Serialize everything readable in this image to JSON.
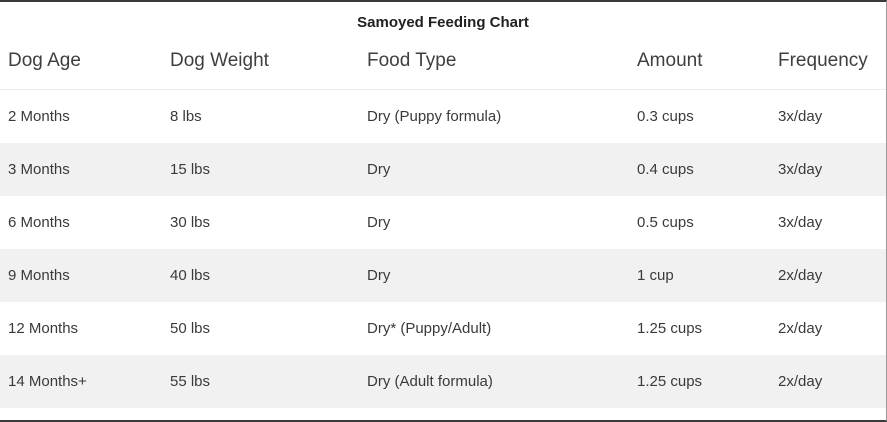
{
  "title": "Samoyed Feeding Chart",
  "colors": {
    "row_alternate": "#f1f1f1",
    "row_default": "#ffffff",
    "border_dark": "#3a3a3a",
    "header_text": "#3c4043",
    "body_text": "#3a3a3a"
  },
  "chart_data": {
    "type": "table",
    "title": "Samoyed Feeding Chart",
    "columns": [
      "Dog Age",
      "Dog Weight",
      "Food Type",
      "Amount",
      "Frequency"
    ],
    "rows": [
      [
        "2 Months",
        "8 lbs",
        "Dry (Puppy formula)",
        "0.3 cups",
        "3x/day"
      ],
      [
        "3 Months",
        "15 lbs",
        "Dry",
        "0.4 cups",
        "3x/day"
      ],
      [
        "6 Months",
        "30 lbs",
        "Dry",
        "0.5 cups",
        "3x/day"
      ],
      [
        "9 Months",
        "40 lbs",
        "Dry",
        "1 cup",
        "2x/day"
      ],
      [
        "12 Months",
        "50 lbs",
        "Dry* (Puppy/Adult)",
        "1.25 cups",
        "2x/day"
      ],
      [
        "14 Months+",
        "55 lbs",
        "Dry (Adult formula)",
        "1.25 cups",
        "2x/day"
      ]
    ],
    "layout": {
      "row_striping": "even-rows-shaded",
      "header_position": "top",
      "title_position": "top-center"
    }
  }
}
